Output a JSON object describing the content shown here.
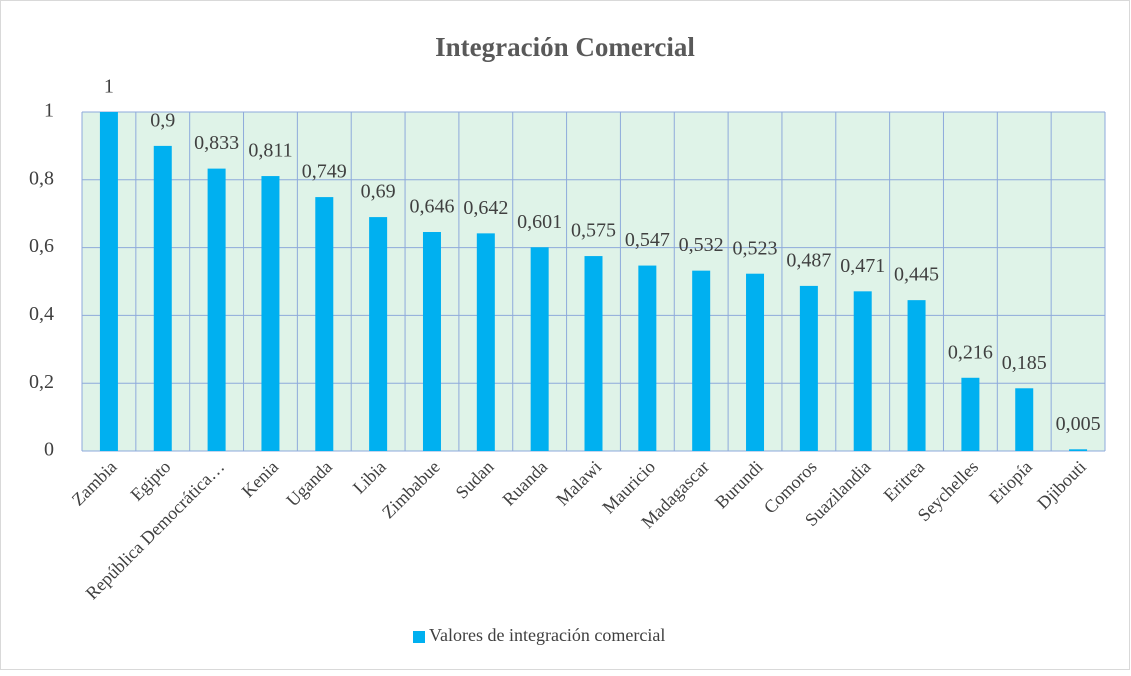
{
  "chart_data": {
    "type": "bar",
    "title": "Integración Comercial",
    "categories": [
      "Zambia",
      "Egipto",
      "República Democrática…",
      "Kenia",
      "Uganda",
      "Libia",
      "Zimbabue",
      "Sudan",
      "Ruanda",
      "Malawi",
      "Mauricio",
      "Madagascar",
      "Burundi",
      "Comoros",
      "Suazilandia",
      "Eritrea",
      "Seychelles",
      "Etiopía",
      "Djibouti"
    ],
    "series": [
      {
        "name": "Valores de integración comercial",
        "color": "#00b0f0",
        "values": [
          1,
          0.9,
          0.833,
          0.811,
          0.749,
          0.69,
          0.646,
          0.642,
          0.601,
          0.575,
          0.547,
          0.532,
          0.523,
          0.487,
          0.471,
          0.445,
          0.216,
          0.185,
          0.005
        ],
        "value_labels": [
          "1",
          "0,9",
          "0,833",
          "0,811",
          "0,749",
          "0,69",
          "0,646",
          "0,642",
          "0,601",
          "0,575",
          "0,547",
          "0,532",
          "0,523",
          "0,487",
          "0,471",
          "0,445",
          "0,216",
          "0,185",
          "0,005"
        ]
      }
    ],
    "ylim": [
      0,
      1
    ],
    "yticks": [
      0,
      {
        "value": 0.2,
        "label": "0,2"
      },
      {
        "value": 0.4,
        "label": "0,4"
      },
      {
        "value": 0.6,
        "label": "0,6"
      },
      {
        "value": 0.8,
        "label": "0,8"
      },
      1
    ],
    "grid": true,
    "legend": "bottom"
  }
}
